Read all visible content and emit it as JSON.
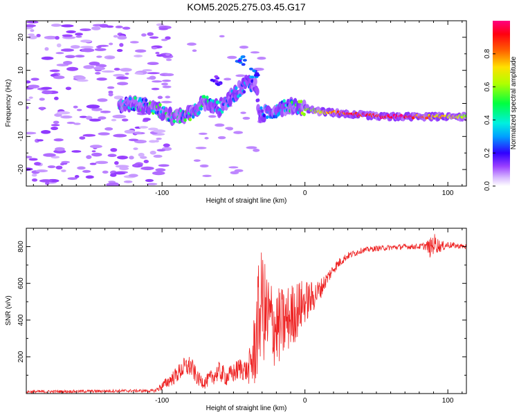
{
  "title": "KOM5.2025.275.03.45.G17",
  "chart_data": [
    {
      "type": "heatmap",
      "xlabel": "Height of straight line (km)",
      "ylabel": "Frequency (Hz)",
      "xlim": [
        -195,
        113
      ],
      "ylim": [
        -25,
        25
      ],
      "x_ticks": [
        -100,
        0,
        100
      ],
      "y_ticks": [
        -20,
        -10,
        0,
        10,
        20
      ],
      "colorbar": {
        "label": "Normalized spectral amplitude",
        "range": [
          0,
          1
        ],
        "ticks": [
          0.0,
          0.2,
          0.4,
          0.6,
          0.8
        ]
      },
      "noise_region": {
        "x": [
          -195,
          -105
        ],
        "amplitude": 0.1
      },
      "ridge": [
        {
          "x": -130,
          "f": -0.5,
          "amp": 0.35
        },
        {
          "x": -115,
          "f": -0.2,
          "amp": 0.4
        },
        {
          "x": -100,
          "f": -2.5,
          "amp": 0.45
        },
        {
          "x": -90,
          "f": -4.5,
          "amp": 0.45
        },
        {
          "x": -80,
          "f": -3.0,
          "amp": 0.45
        },
        {
          "x": -70,
          "f": 0.5,
          "amp": 0.4
        },
        {
          "x": -60,
          "f": -1.5,
          "amp": 0.35
        },
        {
          "x": -50,
          "f": 2.5,
          "amp": 0.3
        },
        {
          "x": -40,
          "f": 6.5,
          "amp": 0.28
        },
        {
          "x": -34,
          "f": 5.0,
          "amp": 0.25
        },
        {
          "x": -32,
          "f": -3.5,
          "amp": 0.25
        },
        {
          "x": -20,
          "f": -2.0,
          "amp": 0.3
        },
        {
          "x": -10,
          "f": -0.5,
          "amp": 0.4
        },
        {
          "x": 0,
          "f": -1.5,
          "amp": 0.55
        },
        {
          "x": 10,
          "f": -2.5,
          "amp": 0.7
        },
        {
          "x": 25,
          "f": -3.0,
          "amp": 0.88
        },
        {
          "x": 40,
          "f": -3.5,
          "amp": 0.95
        },
        {
          "x": 55,
          "f": -4.0,
          "amp": 0.98
        },
        {
          "x": 70,
          "f": -4.0,
          "amp": 1.0
        },
        {
          "x": 85,
          "f": -4.0,
          "amp": 0.8
        },
        {
          "x": 100,
          "f": -4.0,
          "amp": 0.7
        },
        {
          "x": 113,
          "f": -4.0,
          "amp": 0.65
        }
      ],
      "ridge_spurs": [
        {
          "x": -62,
          "f": 7.0,
          "amp": 0.2
        },
        {
          "x": -45,
          "f": 13.0,
          "amp": 0.25
        },
        {
          "x": -35,
          "f": 9.0,
          "amp": 0.3
        }
      ]
    },
    {
      "type": "line",
      "xlabel": "Height of straight line (km)",
      "ylabel": "SNR (v/v)",
      "xlim": [
        -195,
        113
      ],
      "ylim": [
        0,
        900
      ],
      "x_ticks": [
        -100,
        0,
        100
      ],
      "y_ticks": [
        200,
        400,
        600,
        800
      ],
      "series": [
        {
          "name": "SNR",
          "color": "#ee2222",
          "x": [
            -195,
            -160,
            -120,
            -105,
            -100,
            -95,
            -90,
            -85,
            -80,
            -75,
            -70,
            -65,
            -60,
            -55,
            -50,
            -45,
            -40,
            -36,
            -33,
            -30,
            -28,
            -25,
            -20,
            -15,
            -10,
            -5,
            0,
            5,
            10,
            15,
            20,
            25,
            30,
            40,
            50,
            60,
            70,
            80,
            85,
            88,
            90,
            95,
            100,
            105,
            113
          ],
          "values": [
            10,
            12,
            15,
            15,
            40,
            70,
            100,
            140,
            150,
            80,
            60,
            90,
            120,
            90,
            110,
            140,
            120,
            200,
            380,
            520,
            420,
            400,
            360,
            380,
            420,
            460,
            500,
            520,
            560,
            620,
            680,
            720,
            750,
            780,
            790,
            795,
            800,
            800,
            805,
            790,
            820,
            800,
            810,
            805,
            800
          ],
          "noise_amplitude": [
            8,
            8,
            8,
            8,
            25,
            35,
            45,
            55,
            60,
            40,
            35,
            45,
            55,
            50,
            55,
            65,
            60,
            200,
            300,
            280,
            300,
            260,
            220,
            200,
            180,
            160,
            120,
            90,
            60,
            40,
            30,
            25,
            20,
            15,
            15,
            15,
            15,
            15,
            25,
            60,
            60,
            30,
            20,
            15,
            15
          ]
        }
      ]
    }
  ]
}
